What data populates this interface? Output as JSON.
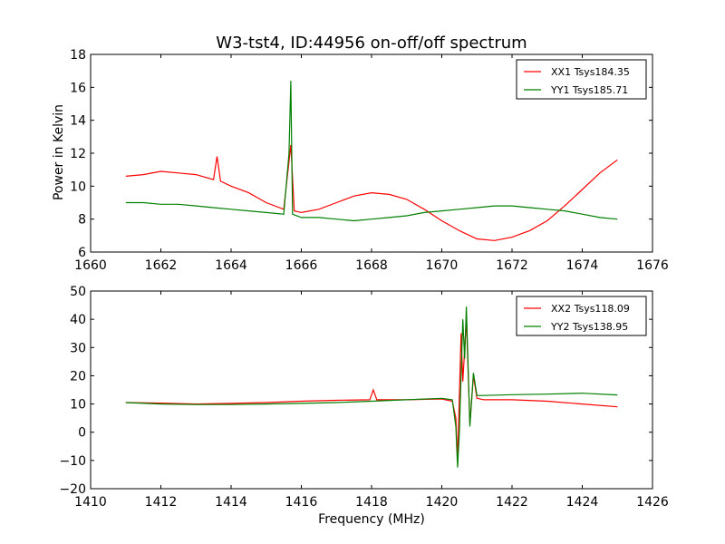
{
  "figure": {
    "title": "W3-tst4, ID:44956 on-off/off spectrum",
    "xlabel": "Frequency (MHz)",
    "ylabel": "Power in Kelvin"
  },
  "chart_data": [
    {
      "type": "line",
      "title": "W3-tst4, ID:44956 on-off/off spectrum",
      "ylabel": "Power in Kelvin",
      "xlabel": "",
      "xlim": [
        1660,
        1676
      ],
      "ylim": [
        6,
        18
      ],
      "xticks": [
        1660,
        1662,
        1664,
        1666,
        1668,
        1670,
        1672,
        1674,
        1676
      ],
      "yticks": [
        6,
        8,
        10,
        12,
        14,
        16,
        18
      ],
      "grid": false,
      "legend": "top-right",
      "series": [
        {
          "name": "XX1 Tsys184.35",
          "color": "#ff0000",
          "x": [
            1661.0,
            1661.5,
            1662.0,
            1662.5,
            1663.0,
            1663.5,
            1663.6,
            1663.7,
            1664.0,
            1664.5,
            1665.0,
            1665.5,
            1665.7,
            1665.8,
            1666.0,
            1666.5,
            1667.0,
            1667.5,
            1668.0,
            1668.5,
            1669.0,
            1669.5,
            1670.0,
            1670.5,
            1671.0,
            1671.5,
            1672.0,
            1672.5,
            1673.0,
            1673.5,
            1674.0,
            1674.5,
            1675.0
          ],
          "y": [
            10.6,
            10.7,
            10.9,
            10.8,
            10.7,
            10.4,
            11.8,
            10.3,
            10.0,
            9.6,
            9.0,
            8.6,
            12.5,
            8.5,
            8.4,
            8.6,
            9.0,
            9.4,
            9.6,
            9.5,
            9.2,
            8.6,
            7.9,
            7.3,
            6.8,
            6.7,
            6.9,
            7.3,
            7.9,
            8.8,
            9.8,
            10.8,
            11.6
          ]
        },
        {
          "name": "YY1 Tsys185.71",
          "color": "#008000",
          "x": [
            1661.0,
            1661.5,
            1662.0,
            1662.5,
            1663.0,
            1663.5,
            1664.0,
            1664.5,
            1665.0,
            1665.5,
            1665.65,
            1665.7,
            1665.75,
            1666.0,
            1666.5,
            1667.0,
            1667.5,
            1668.0,
            1668.5,
            1669.0,
            1669.5,
            1670.0,
            1670.5,
            1671.0,
            1671.5,
            1672.0,
            1672.5,
            1673.0,
            1673.5,
            1674.0,
            1674.5,
            1675.0
          ],
          "y": [
            9.0,
            9.0,
            8.9,
            8.9,
            8.8,
            8.7,
            8.6,
            8.5,
            8.4,
            8.3,
            12.0,
            16.4,
            8.3,
            8.1,
            8.1,
            8.0,
            7.9,
            8.0,
            8.1,
            8.2,
            8.4,
            8.5,
            8.6,
            8.7,
            8.8,
            8.8,
            8.7,
            8.6,
            8.5,
            8.3,
            8.1,
            8.0
          ]
        }
      ]
    },
    {
      "type": "line",
      "title": "",
      "xlabel": "Frequency (MHz)",
      "ylabel": "",
      "xlim": [
        1410,
        1426
      ],
      "ylim": [
        -20,
        50
      ],
      "xticks": [
        1410,
        1412,
        1414,
        1416,
        1418,
        1420,
        1422,
        1424,
        1426
      ],
      "yticks": [
        -20,
        -10,
        0,
        10,
        20,
        30,
        40,
        50
      ],
      "grid": false,
      "legend": "top-right",
      "series": [
        {
          "name": "XX2 Tsys118.09",
          "color": "#ff0000",
          "x": [
            1411.0,
            1412.0,
            1413.0,
            1414.0,
            1415.0,
            1416.0,
            1417.0,
            1417.95,
            1418.05,
            1418.15,
            1419.0,
            1420.0,
            1420.3,
            1420.4,
            1420.45,
            1420.55,
            1420.6,
            1420.7,
            1420.8,
            1420.9,
            1421.0,
            1421.2,
            1422.0,
            1423.0,
            1424.0,
            1425.0
          ],
          "y": [
            10.5,
            10.3,
            10.0,
            10.2,
            10.5,
            11.0,
            11.3,
            11.5,
            15.0,
            11.5,
            11.5,
            11.8,
            11.0,
            5.0,
            -10.0,
            35.0,
            18.0,
            40.0,
            3.0,
            20.0,
            12.0,
            11.5,
            11.5,
            11.0,
            10.0,
            9.0
          ]
        },
        {
          "name": "YY2 Tsys138.95",
          "color": "#008000",
          "x": [
            1411.0,
            1412.0,
            1413.0,
            1414.0,
            1415.0,
            1416.0,
            1417.0,
            1418.0,
            1419.0,
            1420.0,
            1420.3,
            1420.4,
            1420.45,
            1420.5,
            1420.6,
            1420.65,
            1420.7,
            1420.8,
            1420.9,
            1421.0,
            1421.2,
            1422.0,
            1423.0,
            1424.0,
            1425.0
          ],
          "y": [
            10.5,
            10.0,
            9.8,
            9.8,
            10.0,
            10.2,
            10.5,
            11.0,
            11.5,
            12.0,
            11.5,
            2.0,
            -12.5,
            0.0,
            40.0,
            26.0,
            44.5,
            2.0,
            21.0,
            13.0,
            13.0,
            13.3,
            13.5,
            13.8,
            13.2
          ]
        }
      ]
    }
  ]
}
